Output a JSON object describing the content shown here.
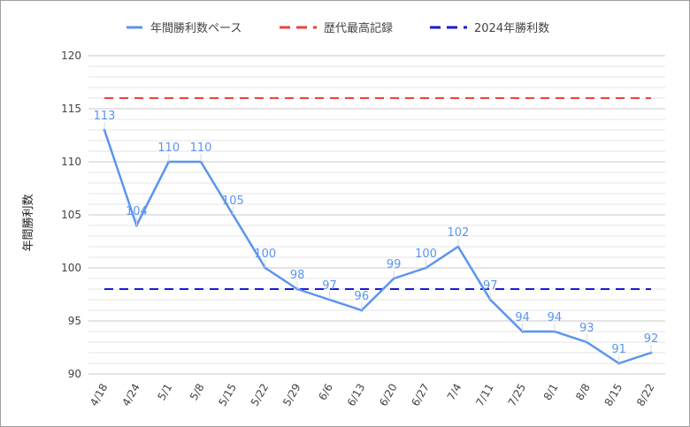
{
  "chart_data": {
    "type": "line",
    "title": "",
    "xlabel": "",
    "ylabel": "年間勝利数",
    "ylim": [
      90,
      120
    ],
    "y_ticks": [
      90,
      95,
      100,
      105,
      110,
      115,
      120
    ],
    "grid": true,
    "legend_position": "top",
    "categories": [
      "4/18",
      "4/24",
      "5/1",
      "5/8",
      "5/15",
      "5/22",
      "5/29",
      "6/6",
      "6/13",
      "6/20",
      "6/27",
      "7/4",
      "7/11",
      "7/25",
      "8/1",
      "8/8",
      "8/15",
      "8/22"
    ],
    "series": [
      {
        "name": "年間勝利数ペース",
        "style": "solid",
        "color": "#5b95ee",
        "values": [
          113,
          104,
          110,
          110,
          105,
          100,
          98,
          97,
          96,
          99,
          100,
          102,
          97,
          94,
          94,
          93,
          91,
          92
        ],
        "data_labels": [
          "113",
          "104",
          "110",
          "110",
          "105",
          "100",
          "98",
          "97",
          "96",
          "99",
          "100",
          "102",
          "97",
          "94",
          "94",
          "93",
          "91",
          "92"
        ]
      },
      {
        "name": "歴代最高記録",
        "style": "dashed",
        "color": "#e8453c",
        "value": 116
      },
      {
        "name": "2024年勝利数",
        "style": "dashed",
        "color": "#1a1ad6",
        "value": 98
      }
    ]
  }
}
